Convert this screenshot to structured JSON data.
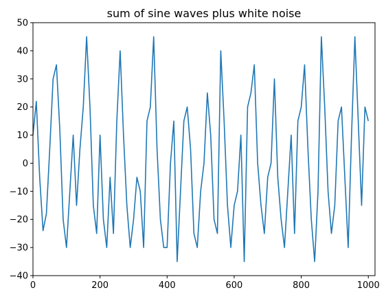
{
  "chart_data": {
    "type": "line",
    "title": "sum of sine waves plus white noise",
    "xlabel": "",
    "ylabel": "",
    "xlim": [
      0,
      1020
    ],
    "ylim": [
      -40,
      50
    ],
    "x_ticks": [
      0,
      200,
      400,
      600,
      800,
      1000
    ],
    "y_ticks": [
      -40,
      -30,
      -20,
      -10,
      0,
      10,
      20,
      30,
      40,
      50
    ],
    "grid": false,
    "legend": "none",
    "series": [
      {
        "color": "#1f77b4",
        "x": [
          0,
          10,
          20,
          30,
          40,
          50,
          60,
          70,
          80,
          90,
          100,
          110,
          120,
          130,
          140,
          150,
          160,
          170,
          180,
          190,
          200,
          210,
          220,
          230,
          240,
          250,
          260,
          270,
          280,
          290,
          300,
          310,
          320,
          330,
          340,
          350,
          360,
          370,
          380,
          390,
          400,
          410,
          420,
          430,
          440,
          450,
          460,
          470,
          480,
          490,
          500,
          510,
          520,
          530,
          540,
          550,
          560,
          570,
          580,
          590,
          600,
          610,
          620,
          630,
          640,
          650,
          660,
          670,
          680,
          690,
          700,
          710,
          720,
          730,
          740,
          750,
          760,
          770,
          780,
          790,
          800,
          810,
          820,
          830,
          840,
          850,
          860,
          870,
          880,
          890,
          900,
          910,
          920,
          930,
          940,
          950,
          960,
          970,
          980,
          990,
          1000
        ],
        "y": [
          10,
          22,
          -5,
          -24,
          -18,
          5,
          30,
          35,
          12,
          -20,
          -30,
          -10,
          10,
          -15,
          5,
          20,
          45,
          20,
          -15,
          -25,
          10,
          -20,
          -30,
          -5,
          -25,
          15,
          40,
          10,
          -15,
          -30,
          -20,
          -5,
          -10,
          -30,
          15,
          20,
          45,
          5,
          -20,
          -30,
          -30,
          0,
          15,
          -35,
          -10,
          15,
          20,
          5,
          -25,
          -30,
          -10,
          0,
          25,
          10,
          -20,
          -25,
          40,
          15,
          -15,
          -30,
          -15,
          -10,
          10,
          -35,
          20,
          25,
          35,
          0,
          -15,
          -25,
          -5,
          0,
          30,
          -5,
          -20,
          -30,
          -10,
          10,
          -25,
          15,
          20,
          35,
          5,
          -20,
          -35,
          -10,
          45,
          20,
          -10,
          -25,
          -15,
          15,
          20,
          -5,
          -30,
          10,
          45,
          15,
          -15,
          20,
          15
        ]
      }
    ]
  }
}
